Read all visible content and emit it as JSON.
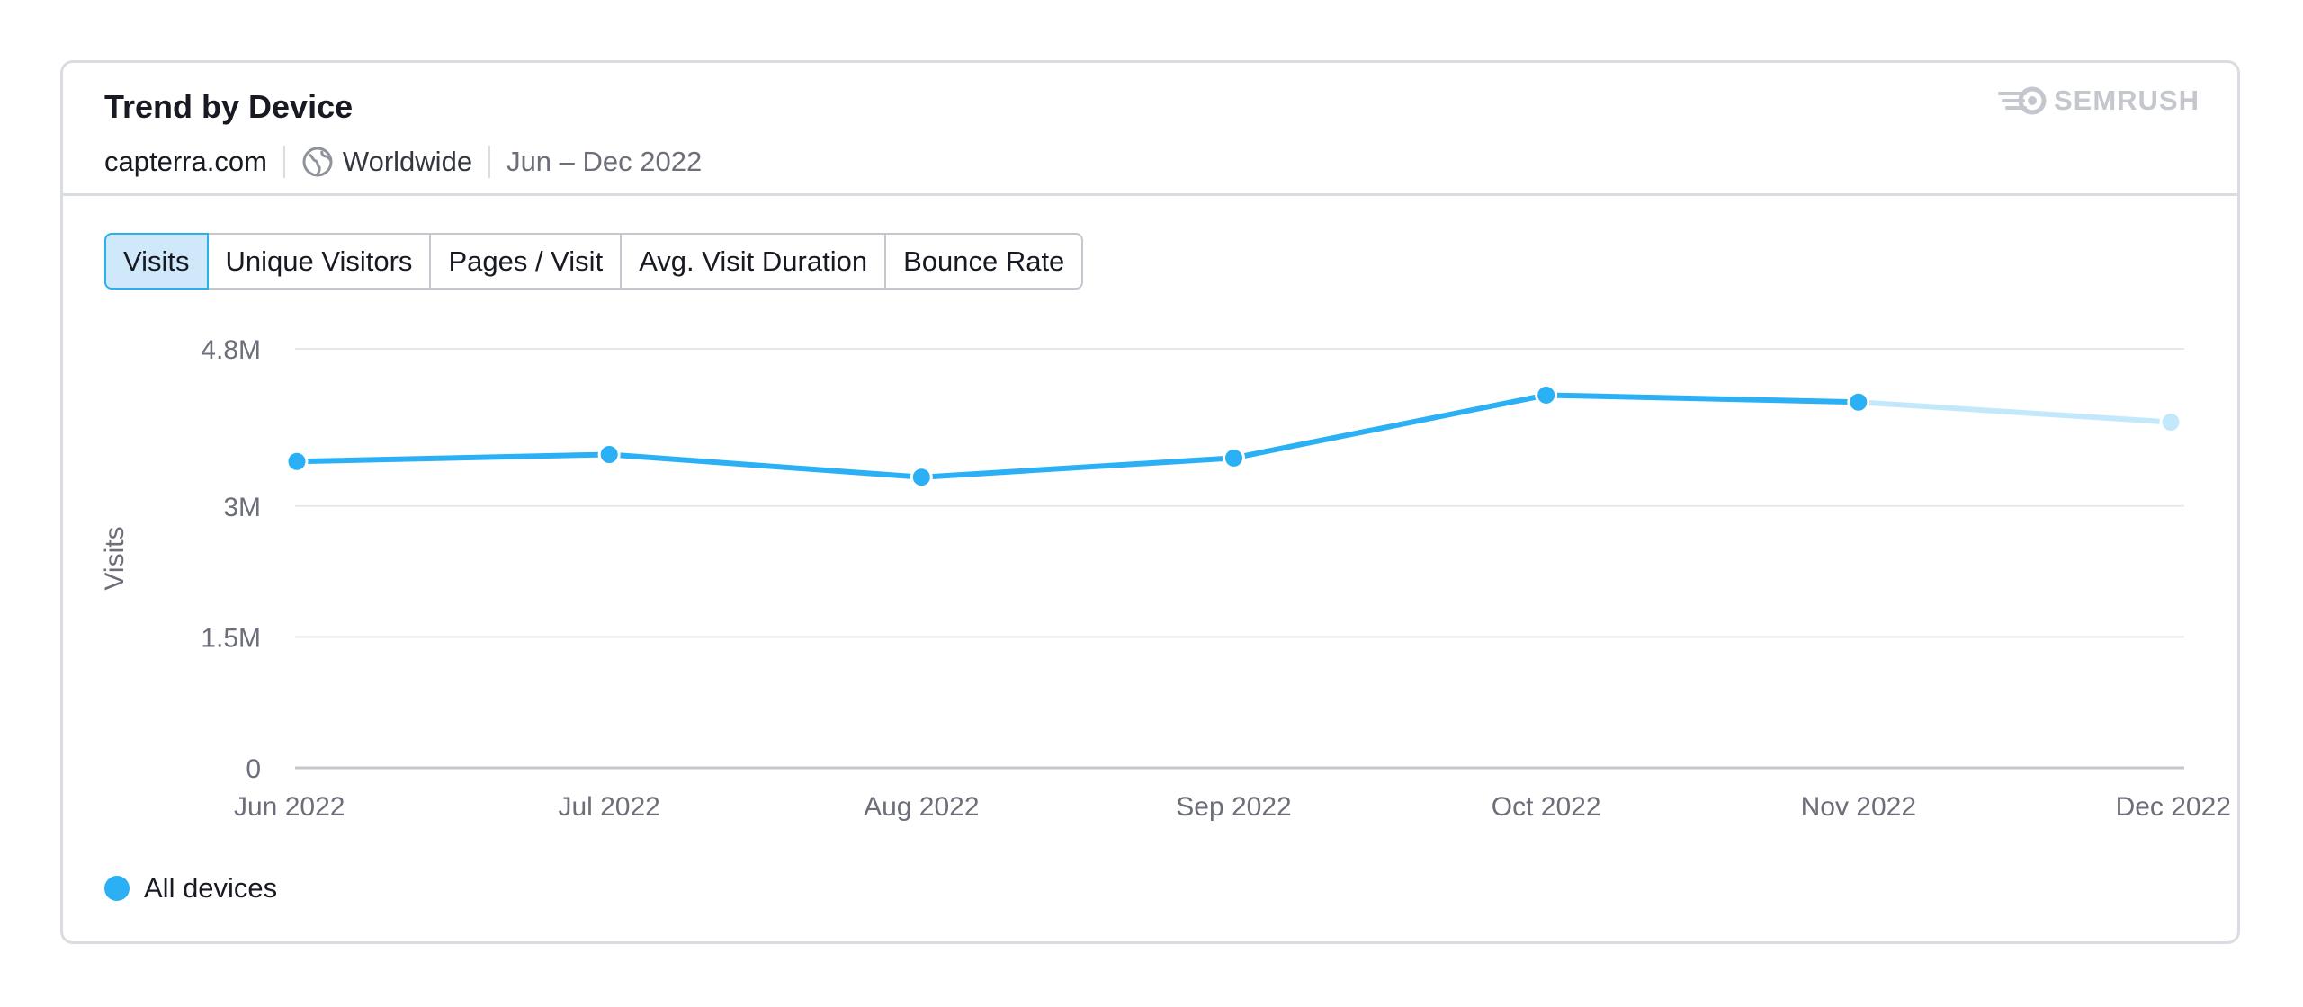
{
  "header": {
    "title": "Trend by Device",
    "domain": "capterra.com",
    "region": "Worldwide",
    "date_range": "Jun – Dec 2022",
    "brand": "SEMRUSH"
  },
  "tabs": [
    {
      "label": "Visits",
      "active": true
    },
    {
      "label": "Unique Visitors",
      "active": false
    },
    {
      "label": "Pages / Visit",
      "active": false
    },
    {
      "label": "Avg. Visit Duration",
      "active": false
    },
    {
      "label": "Bounce Rate",
      "active": false
    }
  ],
  "legend": {
    "label": "All devices",
    "color": "#2bb0f5"
  },
  "chart_data": {
    "type": "line",
    "categories": [
      "Jun 2022",
      "Jul 2022",
      "Aug 2022",
      "Sep 2022",
      "Oct 2022",
      "Nov 2022",
      "Dec 2022"
    ],
    "series": [
      {
        "name": "All devices",
        "values": [
          3510000,
          3590000,
          3330000,
          3550000,
          4270000,
          4190000,
          3960000
        ],
        "color": "#2bb0f5",
        "projected_from_index": 5,
        "projected_color": "#c4e8fb"
      }
    ],
    "ylabel": "Visits",
    "xlabel": "",
    "ylim": [
      0,
      4800000
    ],
    "yticks": [
      0,
      1500000,
      3000000,
      4800000
    ],
    "ytick_labels": [
      "0",
      "1.5M",
      "3M",
      "4.8M"
    ],
    "grid": true,
    "legend_position": "bottom-left"
  },
  "icons": {
    "globe": "globe-icon",
    "brand": "semrush-logo-icon"
  }
}
